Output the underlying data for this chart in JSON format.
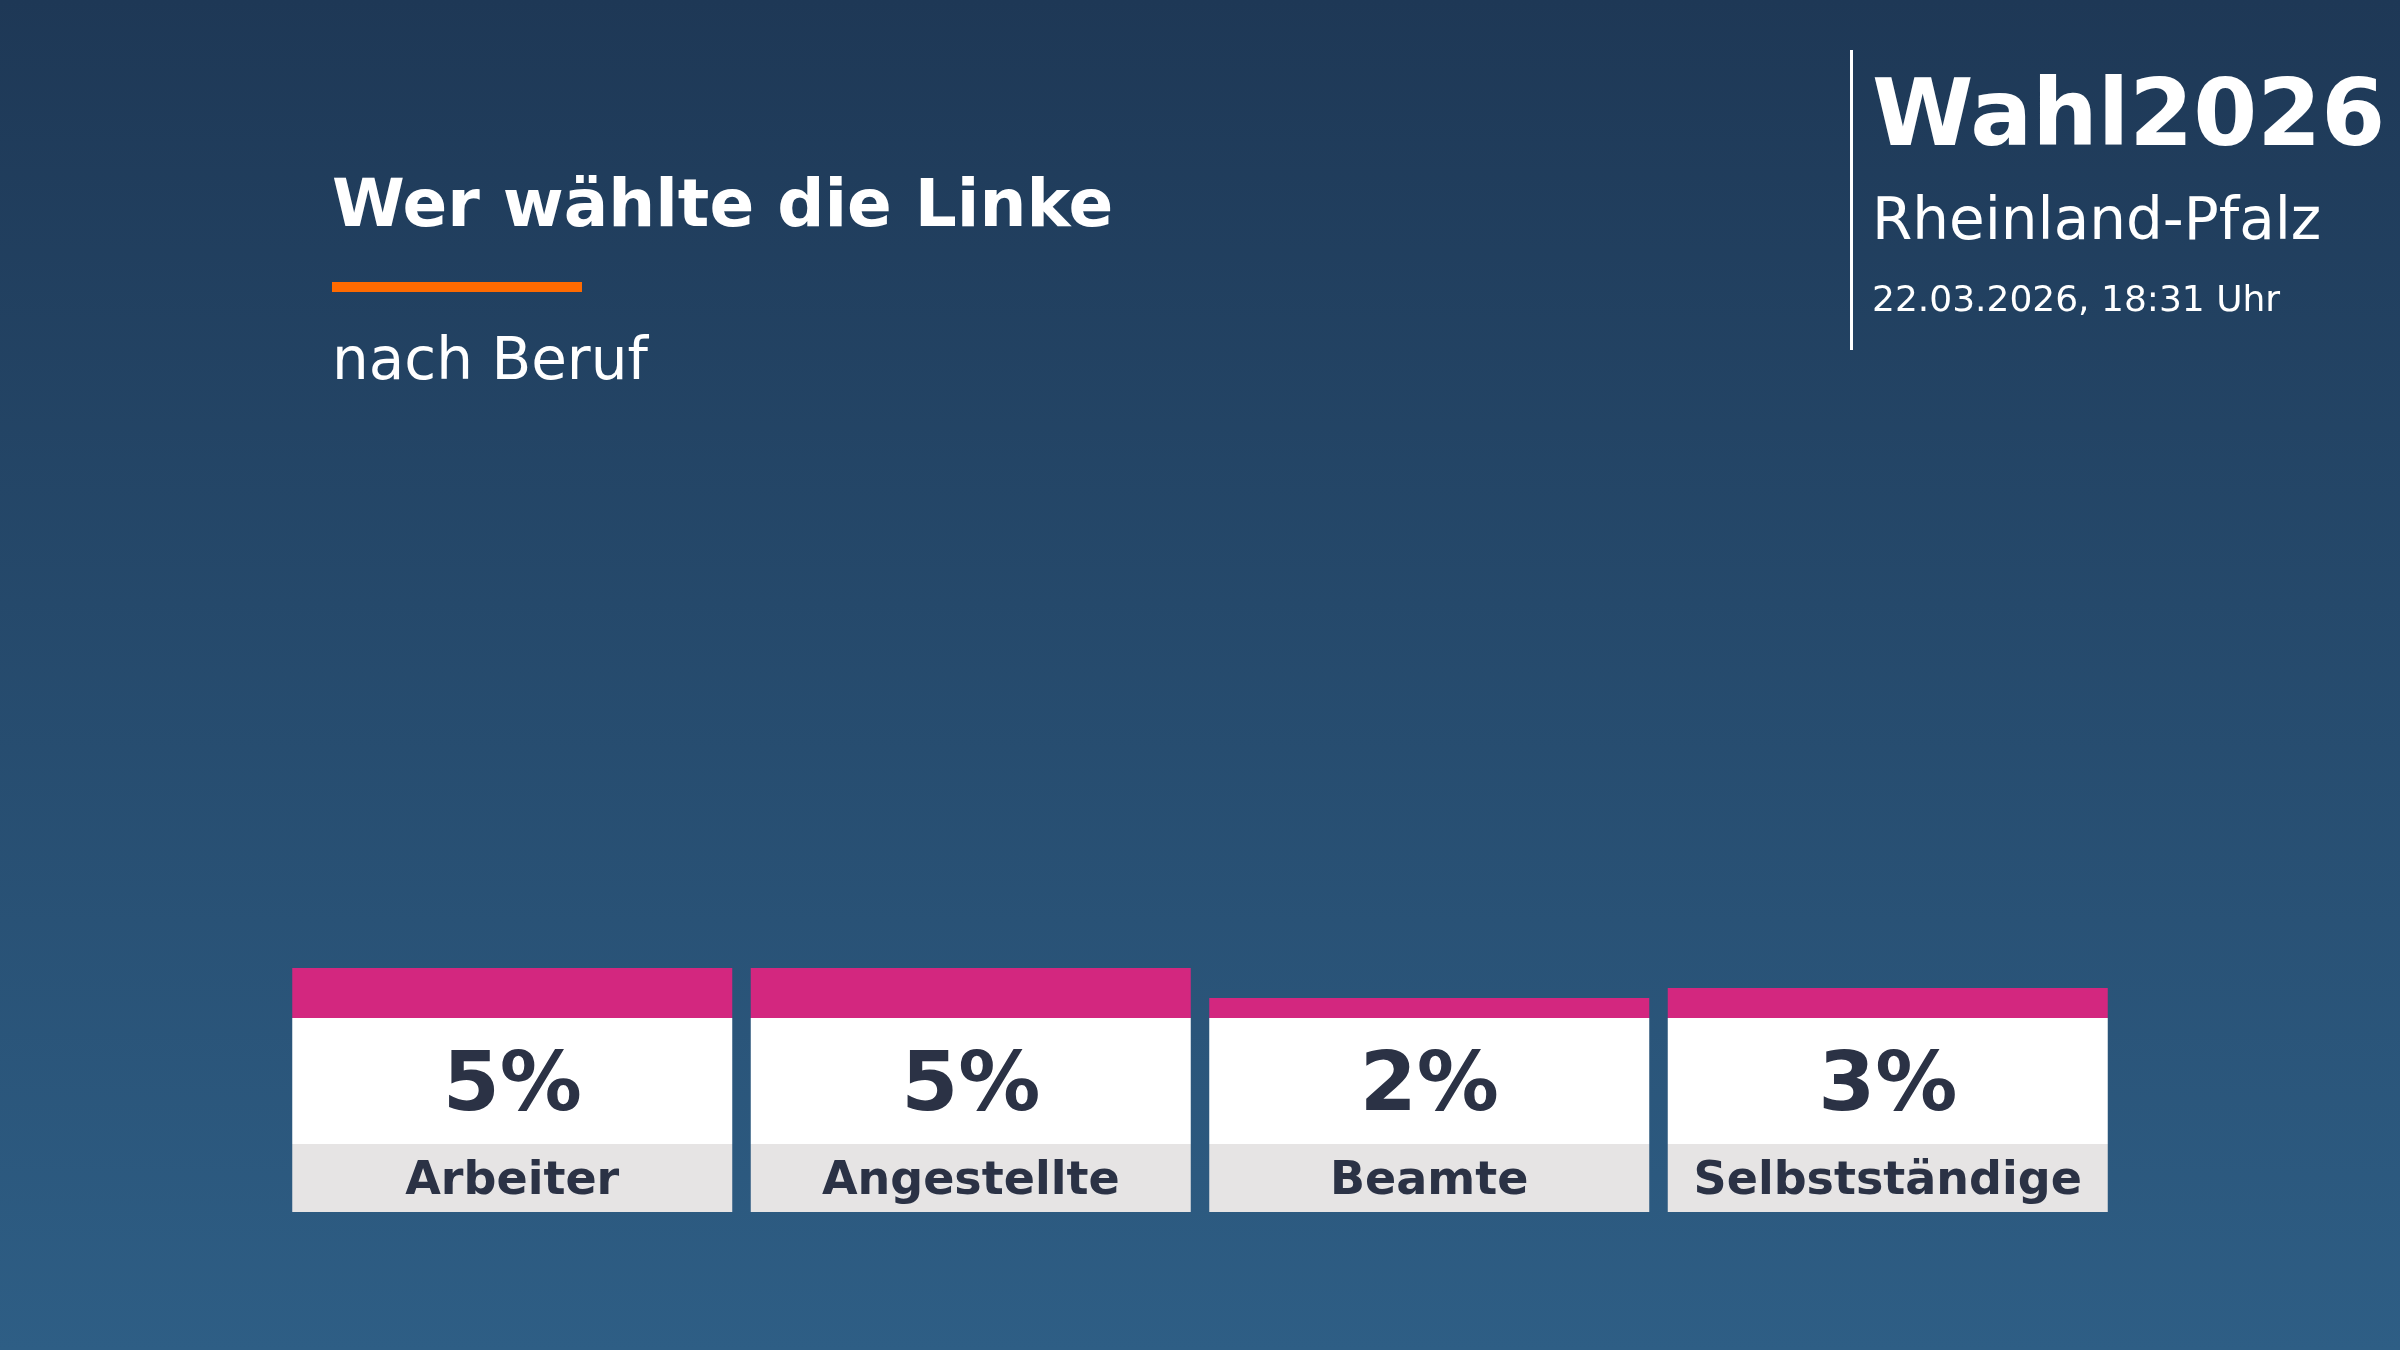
{
  "chart_data": {
    "type": "bar",
    "title": "Wer wählte die Linke",
    "subtitle": "nach Beruf",
    "annotations": [
      "Wahl2026",
      "Rheinland-Pfalz",
      "22.03.2026, 18:31 Uhr"
    ],
    "categories": [
      "Arbeiter",
      "Angestellte",
      "Beamte",
      "Selbstständige"
    ],
    "values": [
      5,
      5,
      2,
      3
    ],
    "value_labels": [
      "5%",
      "5%",
      "2%",
      "3%"
    ],
    "color": "#d3277f"
  }
}
